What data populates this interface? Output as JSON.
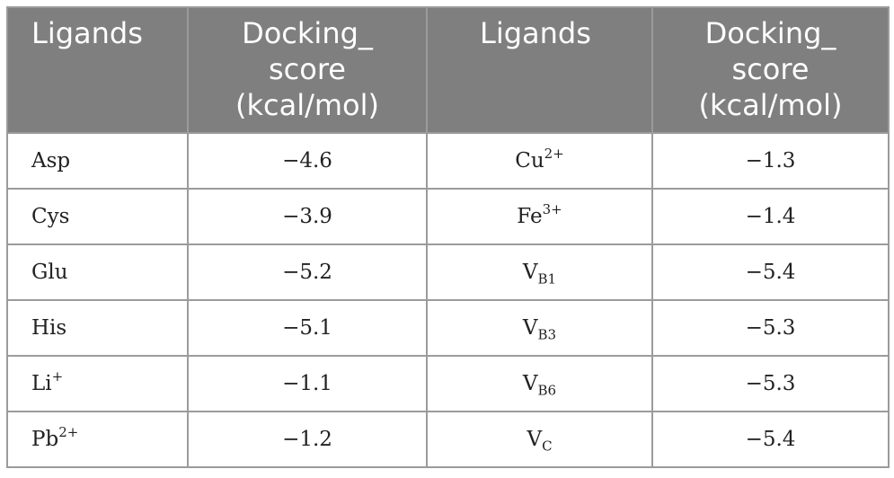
{
  "header": {
    "col1": "Ligands",
    "col2_line1": "Docking_",
    "col2_line2": "score",
    "col2_line3": "(kcal/mol)",
    "col3": "Ligands",
    "col4_line1": "Docking_",
    "col4_line2": "score",
    "col4_line3": "(kcal/mol)"
  },
  "rows": [
    {
      "lig1": "Asp",
      "lig1_sup": "",
      "score1": "−4.6",
      "lig2": "Cu",
      "lig2_sup": "2+",
      "lig2_sub": "",
      "score2": "−1.3"
    },
    {
      "lig1": "Cys",
      "lig1_sup": "",
      "score1": "−3.9",
      "lig2": "Fe",
      "lig2_sup": "3+",
      "lig2_sub": "",
      "score2": "−1.4"
    },
    {
      "lig1": "Glu",
      "lig1_sup": "",
      "score1": "−5.2",
      "lig2": "V",
      "lig2_sup": "",
      "lig2_sub": "B1",
      "score2": "−5.4"
    },
    {
      "lig1": "His",
      "lig1_sup": "",
      "score1": "−5.1",
      "lig2": "V",
      "lig2_sup": "",
      "lig2_sub": "B3",
      "score2": "−5.3"
    },
    {
      "lig1": "Li",
      "lig1_sup": "+",
      "score1": "−1.1",
      "lig2": "V",
      "lig2_sup": "",
      "lig2_sub": "B6",
      "score2": "−5.3"
    },
    {
      "lig1": "Pb",
      "lig1_sup": "2+",
      "score1": "−1.2",
      "lig2": "V",
      "lig2_sup": "",
      "lig2_sub": "C",
      "score2": "−5.4"
    }
  ]
}
